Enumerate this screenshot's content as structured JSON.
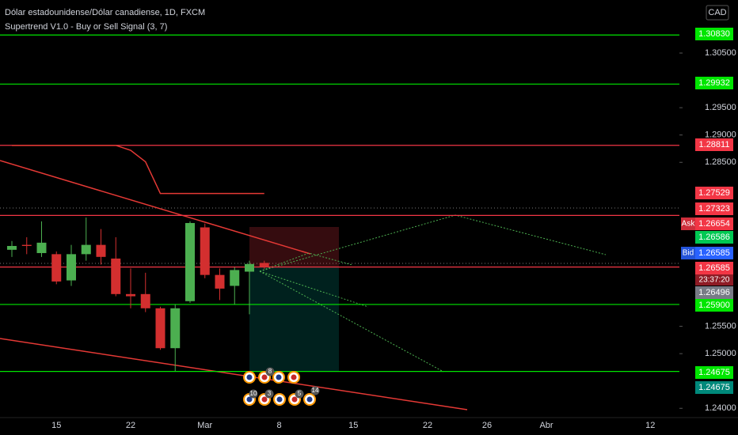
{
  "chart_data": {
    "type": "candlestick",
    "title": "Dólar estadounidense/Dólar canadiense, 1D, FXCM",
    "indicator": "Supertrend V1.0 - Buy or Sell Signal (3, 7)",
    "currency": "CAD",
    "categories": [
      null,
      null,
      null,
      "15",
      null,
      null,
      null,
      null,
      "22",
      null,
      null,
      null,
      null,
      "Mar",
      null,
      null,
      null,
      null,
      "8",
      null,
      null,
      null,
      null,
      "15",
      null,
      null,
      null,
      null,
      "22",
      null,
      null,
      null,
      "26",
      null,
      null,
      null,
      "Abr",
      null,
      null,
      null,
      null,
      null,
      null,
      "12",
      null
    ],
    "open": [
      1.269,
      1.2699,
      1.2684,
      1.2682,
      1.2634,
      1.2682,
      1.2699,
      1.2674,
      1.2609,
      1.2609,
      1.2583,
      1.251,
      1.2596,
      1.2731,
      1.2644,
      1.2624,
      1.265,
      1.2666,
      null,
      null,
      null,
      null,
      null,
      null,
      null,
      null,
      null,
      null,
      null,
      null,
      null,
      null,
      null,
      null,
      null,
      null,
      null,
      null,
      null,
      null,
      null,
      null,
      null,
      null,
      null
    ],
    "high": [
      1.2706,
      1.2713,
      1.2742,
      1.2687,
      1.2699,
      1.2749,
      1.2728,
      1.2713,
      1.2656,
      1.2648,
      1.2586,
      1.259,
      1.2742,
      1.2738,
      1.2656,
      1.2658,
      1.267,
      1.267,
      null,
      null,
      null,
      null,
      null,
      null,
      null,
      null,
      null,
      null,
      null,
      null,
      null,
      null,
      null,
      null,
      null,
      null,
      null,
      null,
      null,
      null,
      null,
      null,
      null,
      null,
      null
    ],
    "low": [
      1.2677,
      1.2682,
      1.2677,
      1.2627,
      1.2624,
      1.267,
      1.2663,
      1.2605,
      1.2583,
      1.2576,
      1.2507,
      1.2468,
      1.2593,
      1.2638,
      1.2598,
      1.259,
      1.2572,
      1.2655,
      null,
      null,
      null,
      null,
      null,
      null,
      null,
      null,
      null,
      null,
      null,
      null,
      null,
      null,
      null,
      null,
      null,
      null,
      null,
      null,
      null,
      null,
      null,
      null,
      null,
      null,
      null
    ],
    "close": [
      1.2697,
      1.2697,
      1.2703,
      1.2632,
      1.2682,
      1.2699,
      1.2677,
      1.2609,
      1.2605,
      1.2583,
      1.251,
      1.2583,
      1.2739,
      1.2644,
      1.2619,
      1.2653,
      1.2664,
      1.26585,
      null,
      null,
      null,
      null,
      null,
      null,
      null,
      null,
      null,
      null,
      null,
      null,
      null,
      null,
      null,
      null,
      null,
      null,
      null,
      null,
      null,
      null,
      null,
      null,
      null,
      null,
      null
    ],
    "up_color": "#4caf50",
    "down_color": "#d32f2f",
    "supertrend": {
      "color": "#e53935",
      "values": [
        1.2881,
        1.2881,
        1.2881,
        1.2881,
        1.2881,
        1.2881,
        1.2881,
        1.2881,
        1.2872,
        1.2851,
        1.2793,
        1.2793,
        1.2793,
        1.2793,
        1.2793,
        1.2793,
        1.2793,
        1.2793,
        null,
        null,
        null,
        null,
        null,
        null,
        null,
        null,
        null,
        null,
        null,
        null,
        null,
        null,
        null,
        null,
        null,
        null,
        null,
        null,
        null,
        null,
        null,
        null,
        null,
        null,
        null
      ]
    },
    "ylim": [
      1.2383,
      1.3147
    ],
    "yticks": [
      {
        "value": 1.305,
        "label": "1.30500"
      },
      {
        "value": 1.295,
        "label": "1.29500"
      },
      {
        "value": 1.29,
        "label": "1.29000"
      },
      {
        "value": 1.285,
        "label": "1.28500"
      },
      {
        "value": 1.255,
        "label": "1.25500"
      },
      {
        "value": 1.25,
        "label": "1.25000"
      },
      {
        "value": 1.24,
        "label": "1.24000"
      }
    ],
    "price_labels": [
      {
        "value": 1.3083,
        "label": "1.30830",
        "color": "#00e600",
        "line": true
      },
      {
        "value": 1.29932,
        "label": "1.29932",
        "color": "#00e600",
        "line": true
      },
      {
        "value": 1.28811,
        "label": "1.28811",
        "color": "#f23645",
        "line": true
      },
      {
        "value": 1.27529,
        "label": "1.27529",
        "color": "#f23645",
        "line": true
      },
      {
        "value": 1.27323,
        "label": "1.27323",
        "color": "#f23645",
        "line": false
      },
      {
        "value": 1.26654,
        "label": "1.26654",
        "color": "#f23645",
        "line": false,
        "tag": "Ask"
      },
      {
        "value": 1.26586,
        "label": "1.26586",
        "color": "#00c853",
        "line": false
      },
      {
        "value": 1.26585,
        "label": "1.26585",
        "color": "#2962ff",
        "line": false,
        "tag": "Bid"
      },
      {
        "value": 1.26585,
        "label": "1.26585",
        "color": "#f23645",
        "line": true,
        "countdown": "23:37:20"
      },
      {
        "value": 1.26496,
        "label": "1.26496",
        "color": "#787b86",
        "line": false
      },
      {
        "value": 1.259,
        "label": "1.25900",
        "color": "#00e600",
        "line": true
      },
      {
        "value": 1.24675,
        "label": "1.24675",
        "color": "#00e600",
        "line": true
      },
      {
        "value": 1.24675,
        "label": "1.24675",
        "color": "#00897b",
        "line": false
      }
    ],
    "event_badges": [
      8,
      10,
      3,
      5,
      14
    ]
  }
}
